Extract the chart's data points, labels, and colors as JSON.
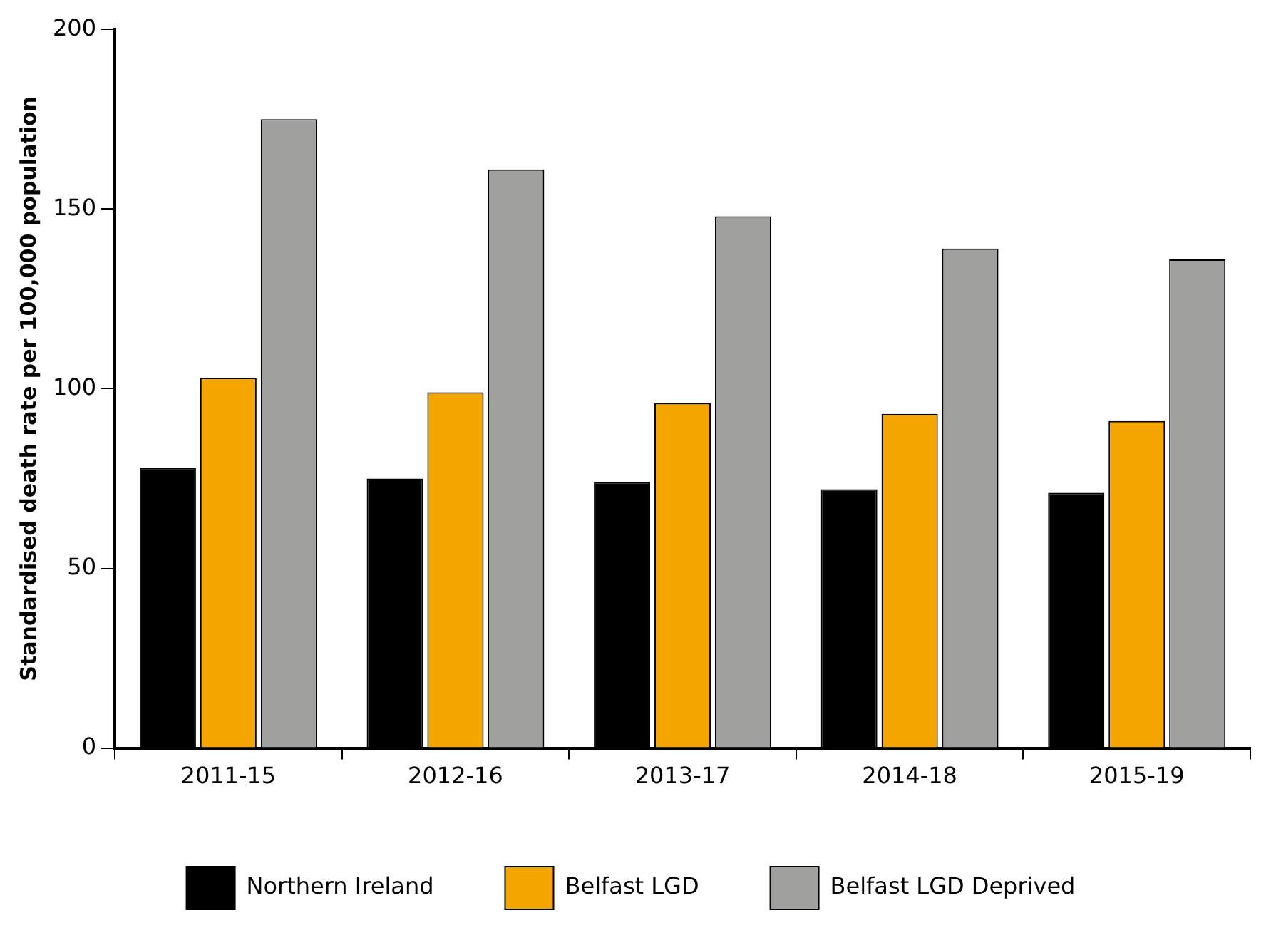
{
  "chart_data": {
    "type": "bar",
    "ylabel": "Standardised death rate per 100,000 population",
    "categories": [
      "2011-15",
      "2012-16",
      "2013-17",
      "2014-18",
      "2015-19"
    ],
    "series": [
      {
        "name": "Northern Ireland",
        "color": "#000000",
        "values": [
          78,
          75,
          74,
          72,
          71
        ]
      },
      {
        "name": "Belfast LGD",
        "color": "#f5a500",
        "values": [
          103,
          99,
          96,
          93,
          91
        ]
      },
      {
        "name": "Belfast LGD Deprived",
        "color": "#a0a09f",
        "values": [
          175,
          161,
          148,
          139,
          136
        ]
      }
    ],
    "ylim": [
      0,
      200
    ],
    "yticks": [
      0,
      50,
      100,
      150,
      200
    ],
    "grid": false,
    "legend": "bottom"
  }
}
